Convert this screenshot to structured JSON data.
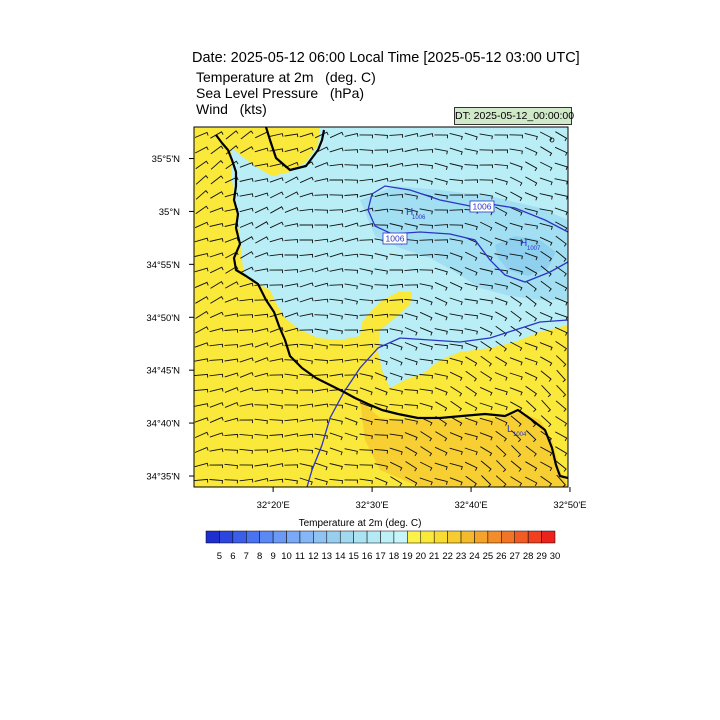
{
  "header": {
    "date_title": "Date: 2025-05-12  06:00 Local Time [2025-05-12  03:00 UTC]",
    "lines": [
      {
        "name": "Temperature at 2m",
        "unit": "(deg. C)"
      },
      {
        "name": "Sea Level Pressure",
        "unit": "(hPa)"
      },
      {
        "name": "Wind",
        "unit": "(kts)"
      }
    ],
    "dt_badge": "DT: 2025-05-12_00:00:00"
  },
  "map": {
    "lat_labels": [
      "35°5'N",
      "35°N",
      "34°55'N",
      "34°50'N",
      "34°45'N",
      "34°40'N",
      "34°35'N"
    ],
    "lon_labels": [
      "32°20'E",
      "32°30'E",
      "32°40'E",
      "32°50'E"
    ],
    "lat_values": [
      35.0833,
      35.0,
      34.9167,
      34.8333,
      34.75,
      34.6667,
      34.5833
    ],
    "lon_values": [
      32.3333,
      32.5,
      32.6667,
      32.8333
    ],
    "lat_range": [
      34.566,
      35.133
    ],
    "lon_range": [
      32.2,
      32.83
    ],
    "contours": [
      {
        "label": "1006",
        "hpa": 1006
      },
      {
        "label": "1006",
        "hpa": 1006
      }
    ],
    "pressure_centers": [
      {
        "marker": "H",
        "value": "1006"
      },
      {
        "marker": "H",
        "value": "1007"
      },
      {
        "marker": "L",
        "value": "1004"
      }
    ],
    "colors": {
      "warm": "#fae83a",
      "warm_orange": "#f7cf33",
      "cool": "#b9eef6",
      "cool_mid": "#a3dff2",
      "cool_deep": "#8fd0ee",
      "contour": "#2a35c6",
      "coast": "#000000"
    }
  },
  "colorbar": {
    "title": "Temperature at 2m  (deg. C)",
    "labels": [
      "5",
      "6",
      "7",
      "8",
      "9",
      "10",
      "11",
      "12",
      "13",
      "14",
      "15",
      "16",
      "17",
      "18",
      "19",
      "20",
      "21",
      "22",
      "23",
      "24",
      "25",
      "26",
      "27",
      "28",
      "29",
      "30"
    ],
    "colors": [
      "#1f2fcf",
      "#2d46df",
      "#3a5ee8",
      "#4a74ef",
      "#5b88f2",
      "#6b99f4",
      "#7aa9f5",
      "#86b6f6",
      "#8fc3f2",
      "#98cff0",
      "#a1d9f0",
      "#abe3f2",
      "#b4eaf5",
      "#bdf0f7",
      "#c7f5f9",
      "#fcf24a",
      "#fae83a",
      "#f8dc34",
      "#f6cc31",
      "#f5b92e",
      "#f4a42b",
      "#f38d29",
      "#f27527",
      "#f15c24",
      "#ef4121",
      "#ec231d"
    ]
  }
}
